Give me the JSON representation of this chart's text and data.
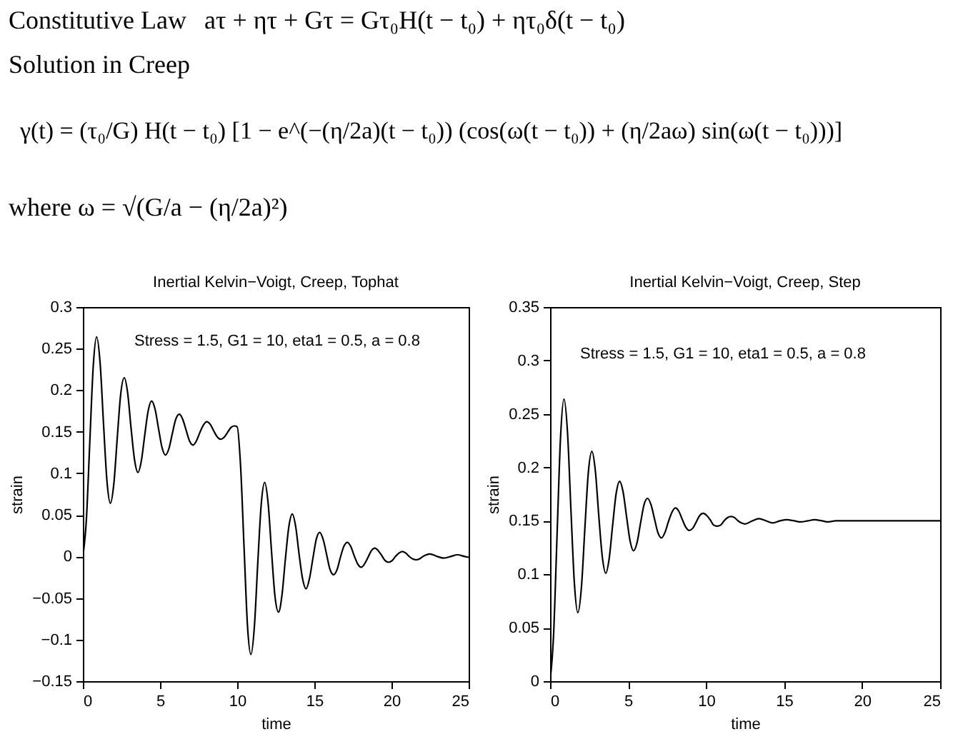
{
  "chart_data": [
    {
      "type": "other",
      "annotations": [
        "Constitutive Law",
        "aτ + ητ + Gτ = Gτ₀H(t − t₀) + ητ₀δ(t − t₀)",
        "Solution in Creep",
        "γ(t) = (τ₀/G) H(t − t₀) [1 − e^(−(η/2a)(t − t₀)) (cos(ω(t − t₀)) + (η/2aω) sin(ω(t − t₀)))]",
        "where ω = √(G/a − (η/2a)²)"
      ]
    },
    {
      "type": "line",
      "title": "Inertial Kelvin−Voigt, Creep, Tophat",
      "xlabel": "time",
      "ylabel": "strain",
      "annotations": [
        "Stress = 1.5, G1 = 10, eta1 = 0.5, a = 0.8"
      ],
      "x": [
        0,
        0.22,
        0.45,
        0.67,
        0.89,
        1.12,
        1.34,
        1.56,
        1.78,
        2.01,
        2.23,
        2.45,
        2.68,
        2.9,
        3.12,
        3.35,
        3.57,
        3.79,
        4.01,
        4.24,
        4.46,
        4.68,
        4.91,
        5.13,
        5.35,
        5.58,
        5.8,
        6.02,
        6.25,
        6.47,
        6.69,
        6.91,
        7.14,
        7.36,
        7.58,
        7.81,
        8.03,
        8.25,
        8.48,
        8.7,
        8.92,
        9.14,
        9.37,
        9.59,
        9.81,
        10,
        10.22,
        10.45,
        10.67,
        10.89,
        11.12,
        11.34,
        11.56,
        11.78,
        12.01,
        12.23,
        12.45,
        12.68,
        12.9,
        13.12,
        13.35,
        13.57,
        13.79,
        14.01,
        14.24,
        14.46,
        14.68,
        14.91,
        15.13,
        15.35,
        15.58,
        15.8,
        16.02,
        16.25,
        16.47,
        16.69,
        16.91,
        17.14,
        17.36,
        17.58,
        17.81,
        18.03,
        18.25,
        18.48,
        18.7,
        18.92,
        19.14,
        19.37,
        19.59,
        19.81,
        20.04,
        20.26,
        20.48,
        20.71,
        20.93,
        21.15,
        21.37,
        21.6,
        21.82,
        22.04,
        22.27,
        22.49,
        22.96,
        23.38,
        23.85,
        24.27,
        24.74,
        25
      ],
      "series": [
        {
          "color": "#000000",
          "line_style": "solid",
          "values": [
            0,
            0.042,
            0.138,
            0.228,
            0.264,
            0.232,
            0.159,
            0.091,
            0.064,
            0.088,
            0.143,
            0.195,
            0.215,
            0.197,
            0.155,
            0.116,
            0.101,
            0.115,
            0.146,
            0.176,
            0.187,
            0.177,
            0.153,
            0.131,
            0.122,
            0.13,
            0.148,
            0.165,
            0.171,
            0.165,
            0.152,
            0.139,
            0.134,
            0.139,
            0.149,
            0.158,
            0.162,
            0.159,
            0.151,
            0.144,
            0.141,
            0.143,
            0.149,
            0.155,
            0.157,
            0.156,
            0.109,
            0.009,
            -0.084,
            -0.118,
            -0.083,
            -0.006,
            0.063,
            0.089,
            0.063,
            0.005,
            -0.048,
            -0.067,
            -0.047,
            -0.004,
            0.036,
            0.051,
            0.036,
            0.003,
            -0.027,
            -0.039,
            -0.027,
            -0.002,
            0.021,
            0.029,
            0.02,
            0.002,
            -0.016,
            -0.022,
            -0.016,
            -0.001,
            0.012,
            0.017,
            0.012,
            0.001,
            -0.009,
            -0.013,
            -0.009,
            -0.001,
            0.007,
            0.01,
            0.007,
            0.001,
            -0.005,
            -0.007,
            -0.005,
            0,
            0.004,
            0.006,
            0.004,
            0,
            -0.003,
            -0.004,
            -0.003,
            0,
            0.002,
            0.003,
            0,
            -0.002,
            0,
            0.002,
            0,
            -0.001
          ]
        }
      ],
      "xlim": [
        0,
        25
      ],
      "ylim": [
        -0.15,
        0.3
      ],
      "xticks": [
        0,
        5,
        10,
        15,
        20,
        25
      ],
      "yticks": [
        -0.15,
        -0.1,
        -0.05,
        0,
        0.05,
        0.1,
        0.15,
        0.2,
        0.25,
        0.3
      ]
    },
    {
      "type": "line",
      "title": "Inertial Kelvin−Voigt, Creep, Step",
      "xlabel": "time",
      "ylabel": "strain",
      "annotations": [
        "Stress = 1.5, G1 = 10, eta1 = 0.5, a = 0.8"
      ],
      "x": [
        0,
        0.22,
        0.45,
        0.67,
        0.89,
        1.12,
        1.34,
        1.56,
        1.78,
        2.01,
        2.23,
        2.45,
        2.68,
        2.9,
        3.12,
        3.35,
        3.57,
        3.79,
        4.01,
        4.24,
        4.46,
        4.68,
        4.91,
        5.13,
        5.35,
        5.58,
        5.8,
        6.02,
        6.25,
        6.47,
        6.69,
        6.91,
        7.14,
        7.36,
        7.58,
        7.81,
        8.03,
        8.25,
        8.48,
        8.7,
        8.92,
        9.14,
        9.37,
        9.59,
        9.81,
        10.04,
        10.26,
        10.48,
        10.71,
        10.93,
        11.15,
        11.37,
        11.6,
        11.82,
        12.04,
        12.27,
        12.49,
        12.96,
        13.38,
        13.85,
        14.27,
        14.74,
        15.17,
        15.64,
        16.06,
        16.53,
        16.95,
        17.42,
        17.84,
        18.31,
        20,
        22.5,
        25
      ],
      "series": [
        {
          "color": "#000000",
          "line_style": "solid",
          "values": [
            0,
            0.042,
            0.138,
            0.228,
            0.264,
            0.232,
            0.159,
            0.091,
            0.064,
            0.088,
            0.143,
            0.195,
            0.215,
            0.197,
            0.155,
            0.116,
            0.101,
            0.115,
            0.146,
            0.176,
            0.187,
            0.177,
            0.153,
            0.131,
            0.122,
            0.13,
            0.148,
            0.165,
            0.171,
            0.165,
            0.152,
            0.139,
            0.134,
            0.139,
            0.149,
            0.158,
            0.162,
            0.159,
            0.151,
            0.144,
            0.141,
            0.143,
            0.149,
            0.155,
            0.157,
            0.155,
            0.151,
            0.146,
            0.145,
            0.146,
            0.15,
            0.153,
            0.154,
            0.153,
            0.15,
            0.148,
            0.147,
            0.15,
            0.152,
            0.15,
            0.148,
            0.15,
            0.151,
            0.15,
            0.149,
            0.15,
            0.151,
            0.15,
            0.149,
            0.15,
            0.15,
            0.15,
            0.15
          ]
        }
      ],
      "xlim": [
        0,
        25
      ],
      "ylim": [
        0,
        0.35
      ],
      "xticks": [
        0,
        5,
        10,
        15,
        20,
        25
      ],
      "yticks": [
        0,
        0.05,
        0.1,
        0.15,
        0.2,
        0.25,
        0.3,
        0.35
      ]
    }
  ]
}
